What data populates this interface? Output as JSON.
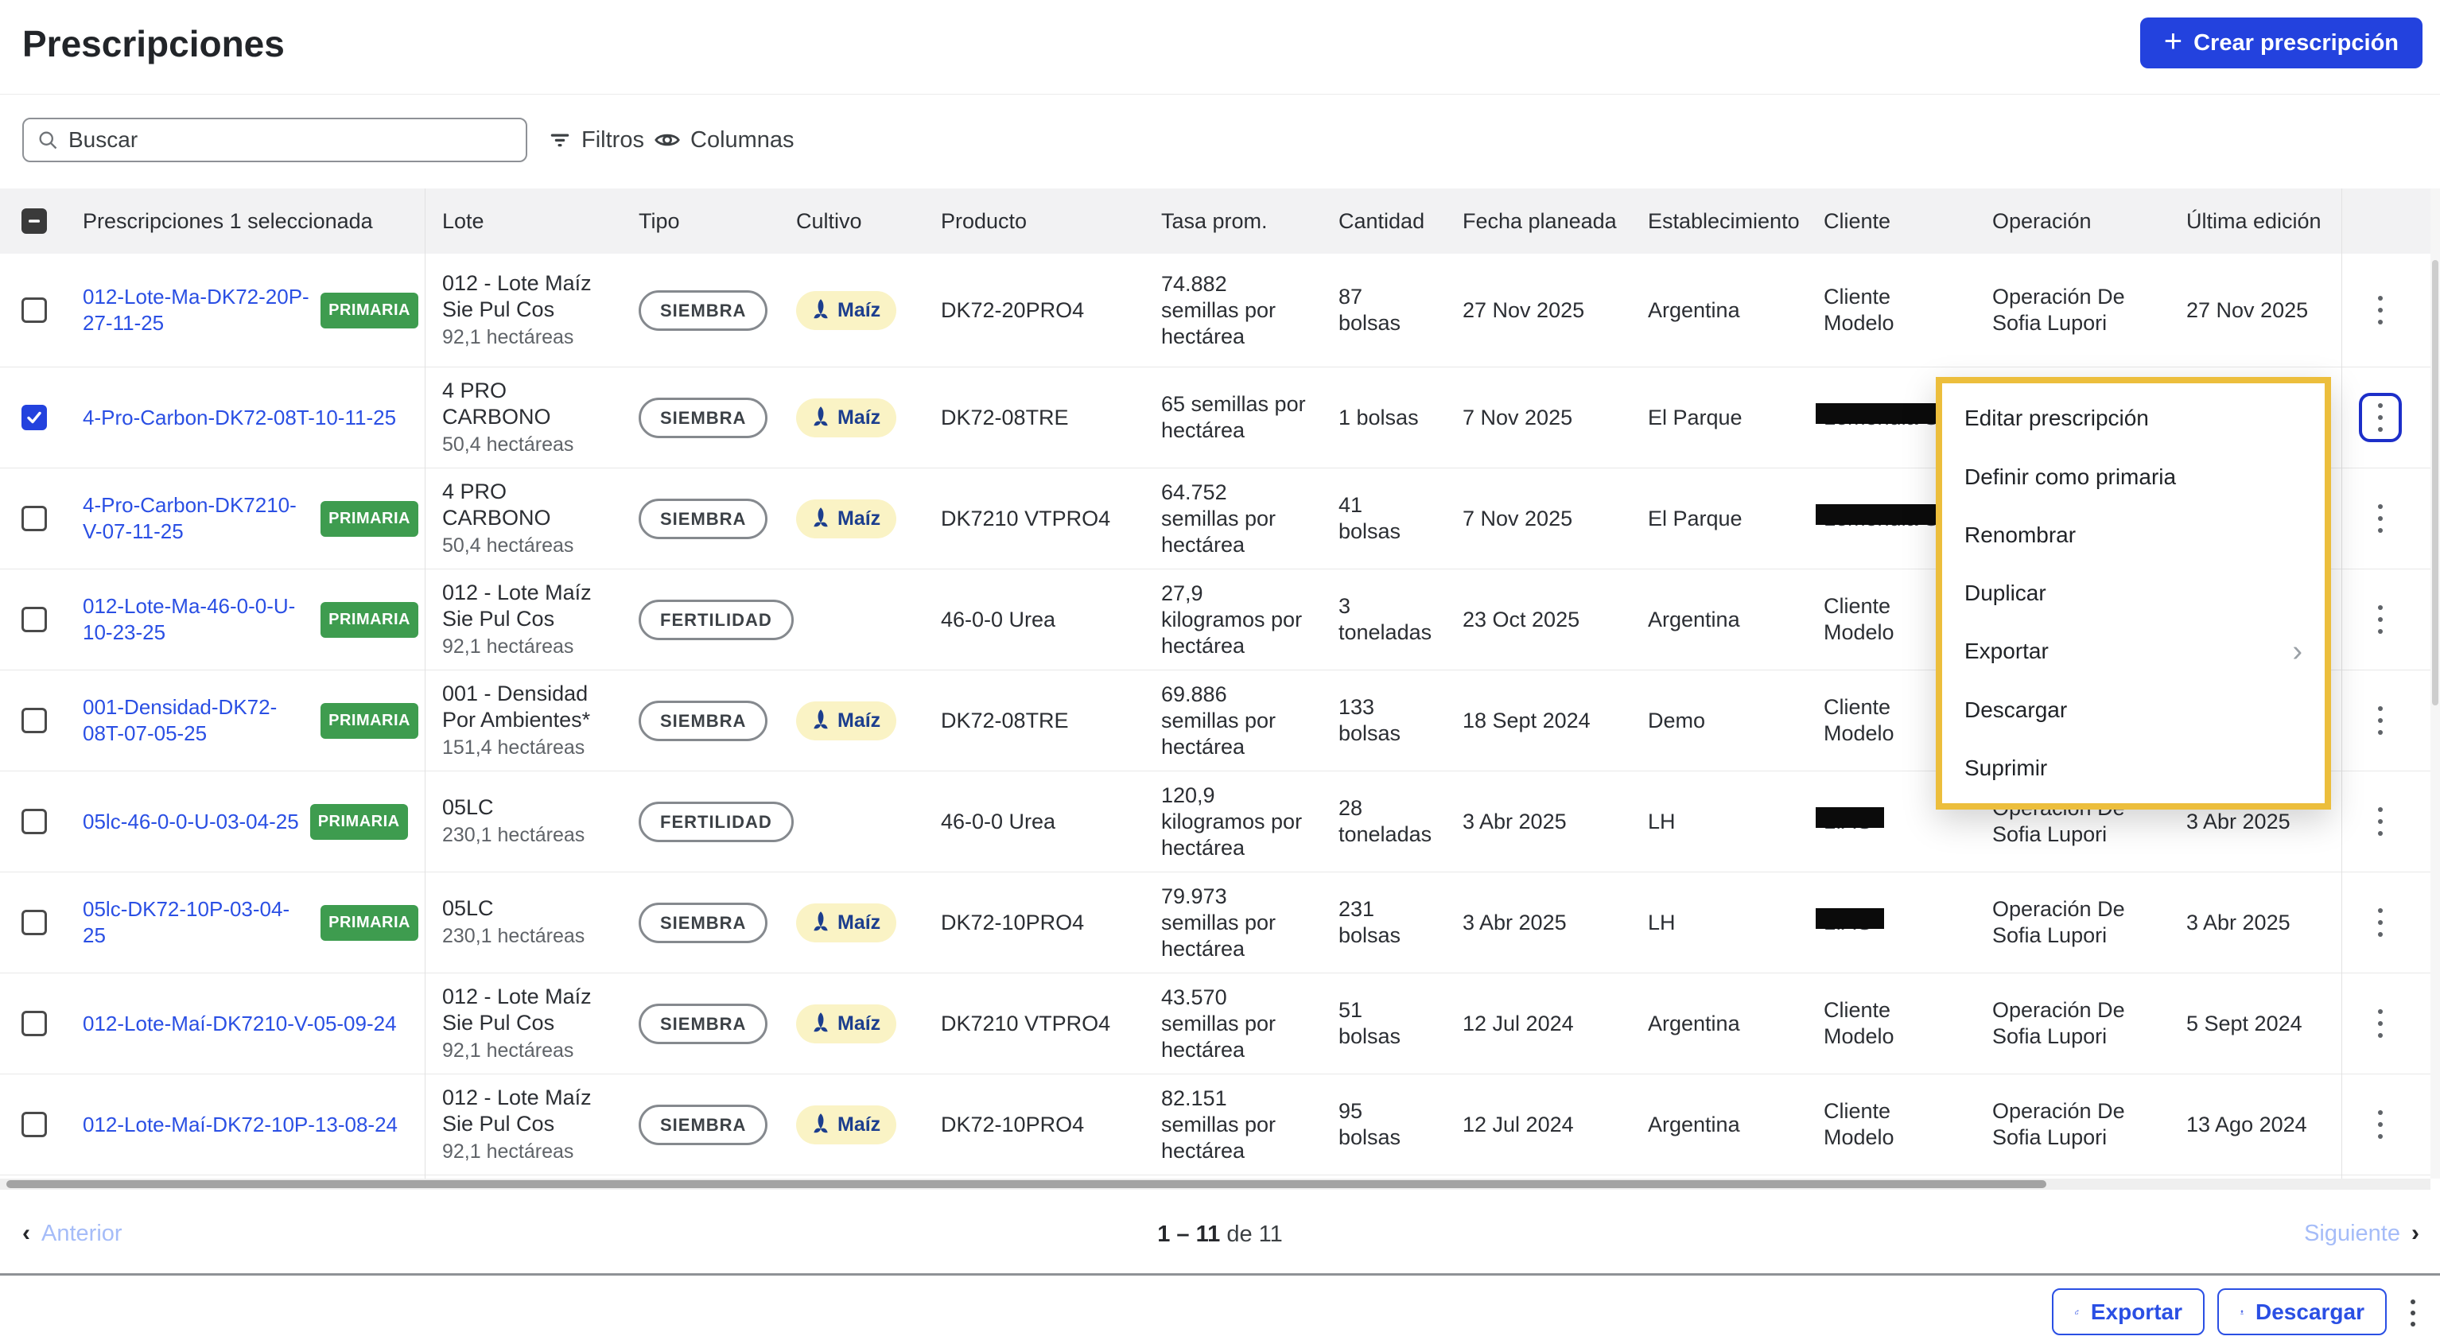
{
  "page": {
    "title": "Prescripciones"
  },
  "toolbar": {
    "create_label": "Crear prescripción",
    "search_placeholder": "Buscar",
    "filters_label": "Filtros",
    "columns_label": "Columnas"
  },
  "colors": {
    "accent": "#2342DE",
    "link": "#2A4FE4",
    "badge_green": "#3E9C4F",
    "highlight_yellow": "#ECBE3C",
    "crop_pill_bg": "#FAF3C5",
    "crop_pill_fg": "#1C3E8E"
  },
  "table": {
    "select_header": "Prescripciones 1 seleccionada",
    "badge_label": "PRIMARIA",
    "columns": [
      "Lote",
      "Tipo",
      "Cultivo",
      "Producto",
      "Tasa prom.",
      "Cantidad",
      "Fecha planeada",
      "Establecimiento",
      "Cliente",
      "Operación",
      "Última edición"
    ],
    "rows": [
      {
        "name": "012-Lote-Ma-DK72-20P-27-11-25",
        "badge": true,
        "selected": false,
        "menu_open": false,
        "lote": "012 - Lote Maíz Sie Pul Cos",
        "area": "92,1 hectáreas",
        "tipo": "SIEMBRA",
        "cultivo": "Maíz",
        "producto": "DK72-20PRO4",
        "tasa": "74.882 semillas por hectárea",
        "cantidad": "87 bolsas",
        "fecha": "27 Nov 2025",
        "establecimiento": "Argentina",
        "cliente": "Cliente Modelo",
        "cliente_redacted": false,
        "operacion": "Operación De Sofia Lupori",
        "ultima": "27 Nov 2025"
      },
      {
        "name": "4-Pro-Carbon-DK72-08T-10-11-25",
        "badge": false,
        "selected": true,
        "menu_open": true,
        "lote": "4 PRO CARBONO",
        "area": "50,4 hectáreas",
        "tipo": "SIEMBRA",
        "cultivo": "Maíz",
        "producto": "DK72-08TRE",
        "tasa": "65 semillas por hectárea",
        "cantidad": "1 bolsas",
        "fecha": "7 Nov 2025",
        "establecimiento": "El Parque",
        "cliente": "Lemondia S.A.",
        "cliente_redacted": true,
        "operacion": "",
        "ultima": ""
      },
      {
        "name": "4-Pro-Carbon-DK7210-V-07-11-25",
        "badge": true,
        "selected": false,
        "menu_open": false,
        "lote": "4 PRO CARBONO",
        "area": "50,4 hectáreas",
        "tipo": "SIEMBRA",
        "cultivo": "Maíz",
        "producto": "DK7210 VTPRO4",
        "tasa": "64.752 semillas por hectárea",
        "cantidad": "41 bolsas",
        "fecha": "7 Nov 2025",
        "establecimiento": "El Parque",
        "cliente": "Lemondia S.A.",
        "cliente_redacted": true,
        "operacion": "",
        "ultima": ""
      },
      {
        "name": "012-Lote-Ma-46-0-0-U-10-23-25",
        "badge": true,
        "selected": false,
        "menu_open": false,
        "lote": "012 - Lote Maíz Sie Pul Cos",
        "area": "92,1 hectáreas",
        "tipo": "FERTILIDAD",
        "cultivo": "",
        "producto": "46-0-0 Urea",
        "tasa": "27,9 kilogramos por hectárea",
        "cantidad": "3 toneladas",
        "fecha": "23 Oct 2025",
        "establecimiento": "Argentina",
        "cliente": "Cliente Modelo",
        "cliente_redacted": false,
        "operacion": "",
        "ultima": ""
      },
      {
        "name": "001-Densidad-DK72-08T-07-05-25",
        "badge": true,
        "selected": false,
        "menu_open": false,
        "lote": "001 - Densidad Por Ambientes*",
        "area": "151,4 hectáreas",
        "tipo": "SIEMBRA",
        "cultivo": "Maíz",
        "producto": "DK72-08TRE",
        "tasa": "69.886 semillas por hectárea",
        "cantidad": "133 bolsas",
        "fecha": "18 Sept 2024",
        "establecimiento": "Demo",
        "cliente": "Cliente Modelo",
        "cliente_redacted": false,
        "operacion": "",
        "ultima": ""
      },
      {
        "name": "05lc-46-0-0-U-03-04-25",
        "badge": true,
        "selected": false,
        "menu_open": false,
        "lote": "05LC",
        "area": "230,1 hectáreas",
        "tipo": "FERTILIDAD",
        "cultivo": "",
        "producto": "46-0-0 Urea",
        "tasa": "120,9 kilogramos por hectárea",
        "cantidad": "28 toneladas",
        "fecha": "3 Abr 2025",
        "establecimiento": "LH",
        "cliente": "LIAG",
        "cliente_redacted": true,
        "operacion": "Operación De Sofia Lupori",
        "ultima": "3 Abr 2025"
      },
      {
        "name": "05lc-DK72-10P-03-04-25",
        "badge": true,
        "selected": false,
        "menu_open": false,
        "lote": "05LC",
        "area": "230,1 hectáreas",
        "tipo": "SIEMBRA",
        "cultivo": "Maíz",
        "producto": "DK72-10PRO4",
        "tasa": "79.973 semillas por hectárea",
        "cantidad": "231 bolsas",
        "fecha": "3 Abr 2025",
        "establecimiento": "LH",
        "cliente": "LIAG",
        "cliente_redacted": true,
        "operacion": "Operación De Sofia Lupori",
        "ultima": "3 Abr 2025"
      },
      {
        "name": "012-Lote-Maí-DK7210-V-05-09-24",
        "badge": false,
        "selected": false,
        "menu_open": false,
        "lote": "012 - Lote Maíz Sie Pul Cos",
        "area": "92,1 hectáreas",
        "tipo": "SIEMBRA",
        "cultivo": "Maíz",
        "producto": "DK7210 VTPRO4",
        "tasa": "43.570 semillas por hectárea",
        "cantidad": "51 bolsas",
        "fecha": "12 Jul 2024",
        "establecimiento": "Argentina",
        "cliente": "Cliente Modelo",
        "cliente_redacted": false,
        "operacion": "Operación De Sofia Lupori",
        "ultima": "5 Sept 2024"
      },
      {
        "name": "012-Lote-Maí-DK72-10P-13-08-24",
        "badge": false,
        "selected": false,
        "menu_open": false,
        "lote": "012 - Lote Maíz Sie Pul Cos",
        "area": "92,1 hectáreas",
        "tipo": "SIEMBRA",
        "cultivo": "Maíz",
        "producto": "DK72-10PRO4",
        "tasa": "82.151 semillas por hectárea",
        "cantidad": "95 bolsas",
        "fecha": "12 Jul 2024",
        "establecimiento": "Argentina",
        "cliente": "Cliente Modelo",
        "cliente_redacted": false,
        "operacion": "Operación De Sofia Lupori",
        "ultima": "13 Ago 2024"
      }
    ]
  },
  "menu": {
    "items": [
      {
        "label": "Editar prescripción",
        "submenu": false
      },
      {
        "label": "Definir como primaria",
        "submenu": false
      },
      {
        "label": "Renombrar",
        "submenu": false
      },
      {
        "label": "Duplicar",
        "submenu": false
      },
      {
        "label": "Exportar",
        "submenu": true
      },
      {
        "label": "Descargar",
        "submenu": false
      },
      {
        "label": "Suprimir",
        "submenu": false
      }
    ]
  },
  "pagination": {
    "prev": "Anterior",
    "range": "1 – 11",
    "of": "de 11",
    "next": "Siguiente"
  },
  "footer": {
    "export_label": "Exportar",
    "download_label": "Descargar"
  }
}
